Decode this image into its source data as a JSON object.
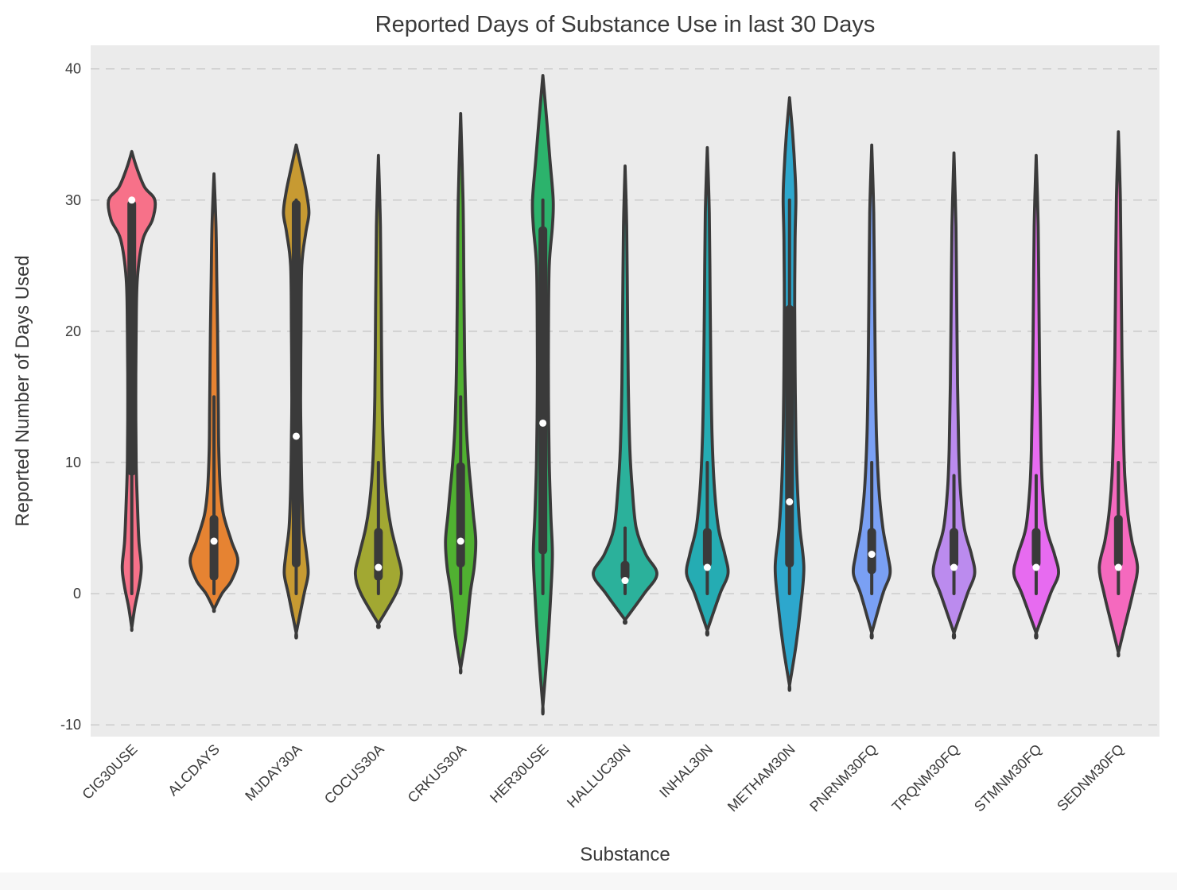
{
  "figure": {
    "background": "#ffffff",
    "axes_background": "#ebebeb",
    "grid_color": "#c9c9c9",
    "outline_color": "#3a3a3a",
    "text_color": "#3a3a3a",
    "footer_strip_color": "#f7f7f7"
  },
  "chart_data": {
    "type": "violin",
    "title": "Reported Days of Substance Use in last 30 Days",
    "xlabel": "Substance",
    "ylabel": "Reported Number of Days Used",
    "ylim": [
      -10.9,
      41.8
    ],
    "yticks": [
      -10,
      0,
      10,
      20,
      30,
      40
    ],
    "grid": "dashed-horizontal",
    "legend": "none",
    "categories": [
      "CIG30USE",
      "ALCDAYS",
      "MJDAY30A",
      "COCUS30A",
      "CRKUS30A",
      "HER30USE",
      "HALLUC30N",
      "INHAL30N",
      "METHAM30N",
      "PNRNM30FQ",
      "TRQNM30FQ",
      "STMNM30FQ",
      "SEDNM30FQ"
    ],
    "series": [
      {
        "label": "CIG30USE",
        "color": "#f77189",
        "median": 30,
        "q1": 9,
        "q3": 30,
        "whisker_low": 0,
        "whisker_high": 30,
        "profile": [
          [
            33.7,
            0
          ],
          [
            32.5,
            6
          ],
          [
            31,
            16
          ],
          [
            30,
            29
          ],
          [
            28.5,
            26
          ],
          [
            27,
            14
          ],
          [
            24,
            7
          ],
          [
            20,
            5.5
          ],
          [
            15,
            5
          ],
          [
            10,
            5.5
          ],
          [
            7,
            7
          ],
          [
            4,
            9
          ],
          [
            2,
            12
          ],
          [
            0.5,
            9
          ],
          [
            -1,
            4
          ],
          [
            -2.6,
            0
          ]
        ]
      },
      {
        "label": "ALCDAYS",
        "color": "#e68332",
        "median": 4,
        "q1": 1,
        "q3": 6,
        "whisker_low": 0,
        "whisker_high": 15,
        "profile": [
          [
            32,
            0
          ],
          [
            28,
            2.5
          ],
          [
            24,
            3.5
          ],
          [
            20,
            4.5
          ],
          [
            17,
            5
          ],
          [
            14,
            5.5
          ],
          [
            11,
            6
          ],
          [
            8,
            8
          ],
          [
            6,
            12
          ],
          [
            4,
            22
          ],
          [
            2.5,
            30
          ],
          [
            1,
            22
          ],
          [
            0,
            10
          ],
          [
            -1.2,
            0
          ]
        ]
      },
      {
        "label": "MJDAY30A",
        "color": "#c79a32",
        "median": 12,
        "q1": 2,
        "q3": 30,
        "whisker_low": 0,
        "whisker_high": 30,
        "profile": [
          [
            34.2,
            0
          ],
          [
            32,
            8
          ],
          [
            30.5,
            13
          ],
          [
            29,
            16
          ],
          [
            27.5,
            12
          ],
          [
            25,
            7
          ],
          [
            20,
            6
          ],
          [
            15,
            5.5
          ],
          [
            12,
            6
          ],
          [
            8,
            7
          ],
          [
            5,
            9
          ],
          [
            3,
            13
          ],
          [
            1.5,
            15
          ],
          [
            0,
            10
          ],
          [
            -3,
            0
          ]
        ]
      },
      {
        "label": "COCUS30A",
        "color": "#a2a832",
        "median": 2,
        "q1": 1,
        "q3": 5,
        "whisker_low": 0,
        "whisker_high": 10,
        "profile": [
          [
            33.4,
            0
          ],
          [
            28,
            2.5
          ],
          [
            22,
            3.5
          ],
          [
            15,
            4.5
          ],
          [
            10,
            7
          ],
          [
            7,
            11
          ],
          [
            5,
            16
          ],
          [
            3,
            24
          ],
          [
            1.5,
            29
          ],
          [
            0,
            22
          ],
          [
            -2.3,
            0
          ]
        ]
      },
      {
        "label": "CRKUS30A",
        "color": "#50b131",
        "median": 4,
        "q1": 2,
        "q3": 10,
        "whisker_low": 0,
        "whisker_high": 15,
        "profile": [
          [
            36.6,
            0
          ],
          [
            30,
            3
          ],
          [
            24,
            4
          ],
          [
            18,
            5
          ],
          [
            13,
            7
          ],
          [
            10,
            10
          ],
          [
            8,
            13
          ],
          [
            6,
            16
          ],
          [
            4,
            19
          ],
          [
            2,
            17
          ],
          [
            0,
            12
          ],
          [
            -3,
            7
          ],
          [
            -5.7,
            0
          ]
        ]
      },
      {
        "label": "HER30USE",
        "color": "#2cb36c",
        "median": 13,
        "q1": 3,
        "q3": 28,
        "whisker_low": 0,
        "whisker_high": 30,
        "profile": [
          [
            39.5,
            0
          ],
          [
            36,
            5
          ],
          [
            33,
            9
          ],
          [
            30,
            13
          ],
          [
            28,
            12
          ],
          [
            25,
            8
          ],
          [
            20,
            7
          ],
          [
            15,
            7
          ],
          [
            10,
            8
          ],
          [
            6,
            10
          ],
          [
            3,
            12
          ],
          [
            0,
            10
          ],
          [
            -4,
            6
          ],
          [
            -8.6,
            0
          ]
        ]
      },
      {
        "label": "HALLUC30N",
        "color": "#2bb19b",
        "median": 1,
        "q1": 1,
        "q3": 2.5,
        "whisker_low": 0,
        "whisker_high": 5,
        "profile": [
          [
            32.6,
            0
          ],
          [
            28,
            2
          ],
          [
            22,
            3
          ],
          [
            16,
            4
          ],
          [
            11,
            6
          ],
          [
            8,
            9
          ],
          [
            5,
            14
          ],
          [
            3,
            26
          ],
          [
            1.5,
            40
          ],
          [
            0,
            24
          ],
          [
            -2,
            0
          ]
        ]
      },
      {
        "label": "INHAL30N",
        "color": "#25acb3",
        "median": 2,
        "q1": 2,
        "q3": 5,
        "whisker_low": 0,
        "whisker_high": 10,
        "profile": [
          [
            34,
            0
          ],
          [
            29,
            2.5
          ],
          [
            23,
            3.5
          ],
          [
            17,
            4.5
          ],
          [
            12,
            6
          ],
          [
            8,
            9
          ],
          [
            5,
            14
          ],
          [
            3,
            22
          ],
          [
            1.5,
            26
          ],
          [
            0,
            16
          ],
          [
            -2.8,
            0
          ]
        ]
      },
      {
        "label": "METHAM30N",
        "color": "#2da7cd",
        "median": 7,
        "q1": 2,
        "q3": 22,
        "whisker_low": 0,
        "whisker_high": 30,
        "profile": [
          [
            37.8,
            0
          ],
          [
            35,
            4
          ],
          [
            32,
            7
          ],
          [
            30,
            8
          ],
          [
            27,
            7
          ],
          [
            22,
            6.5
          ],
          [
            17,
            7
          ],
          [
            12,
            8
          ],
          [
            8,
            10
          ],
          [
            5,
            13
          ],
          [
            2,
            18
          ],
          [
            -1,
            14
          ],
          [
            -4,
            8
          ],
          [
            -7,
            0
          ]
        ]
      },
      {
        "label": "PNRNM30FQ",
        "color": "#7aa0f4",
        "median": 3,
        "q1": 1.5,
        "q3": 5,
        "whisker_low": 0,
        "whisker_high": 10,
        "profile": [
          [
            34.2,
            0
          ],
          [
            29,
            2.5
          ],
          [
            23,
            3.5
          ],
          [
            17,
            4.5
          ],
          [
            12,
            6
          ],
          [
            8,
            9
          ],
          [
            5,
            14
          ],
          [
            3,
            20
          ],
          [
            1.5,
            23
          ],
          [
            0,
            14
          ],
          [
            -3,
            0
          ]
        ]
      },
      {
        "label": "TRQNM30FQ",
        "color": "#bb8bee",
        "median": 2,
        "q1": 2,
        "q3": 5,
        "whisker_low": 0,
        "whisker_high": 9,
        "profile": [
          [
            33.6,
            0
          ],
          [
            28,
            2.5
          ],
          [
            22,
            3.5
          ],
          [
            16,
            4.5
          ],
          [
            11,
            6
          ],
          [
            8,
            8
          ],
          [
            5,
            13
          ],
          [
            3,
            22
          ],
          [
            1.5,
            26
          ],
          [
            0,
            17
          ],
          [
            -3,
            0
          ]
        ]
      },
      {
        "label": "STMNM30FQ",
        "color": "#e76bf0",
        "median": 2,
        "q1": 2,
        "q3": 5,
        "whisker_low": 0,
        "whisker_high": 9,
        "profile": [
          [
            33.4,
            0
          ],
          [
            28,
            2.5
          ],
          [
            22,
            3.5
          ],
          [
            16,
            4.5
          ],
          [
            11,
            6
          ],
          [
            8,
            8
          ],
          [
            5,
            13
          ],
          [
            3,
            23
          ],
          [
            1.5,
            28
          ],
          [
            0,
            18
          ],
          [
            -3,
            0
          ]
        ]
      },
      {
        "label": "SEDNM30FQ",
        "color": "#f569be",
        "median": 2,
        "q1": 2,
        "q3": 6,
        "whisker_low": 0,
        "whisker_high": 10,
        "profile": [
          [
            35.2,
            0
          ],
          [
            30,
            2.5
          ],
          [
            24,
            3.5
          ],
          [
            18,
            4.5
          ],
          [
            13,
            6
          ],
          [
            9,
            8
          ],
          [
            6,
            12
          ],
          [
            4,
            17
          ],
          [
            2,
            24
          ],
          [
            0,
            18
          ],
          [
            -2.5,
            8
          ],
          [
            -4.5,
            0
          ]
        ]
      }
    ]
  }
}
